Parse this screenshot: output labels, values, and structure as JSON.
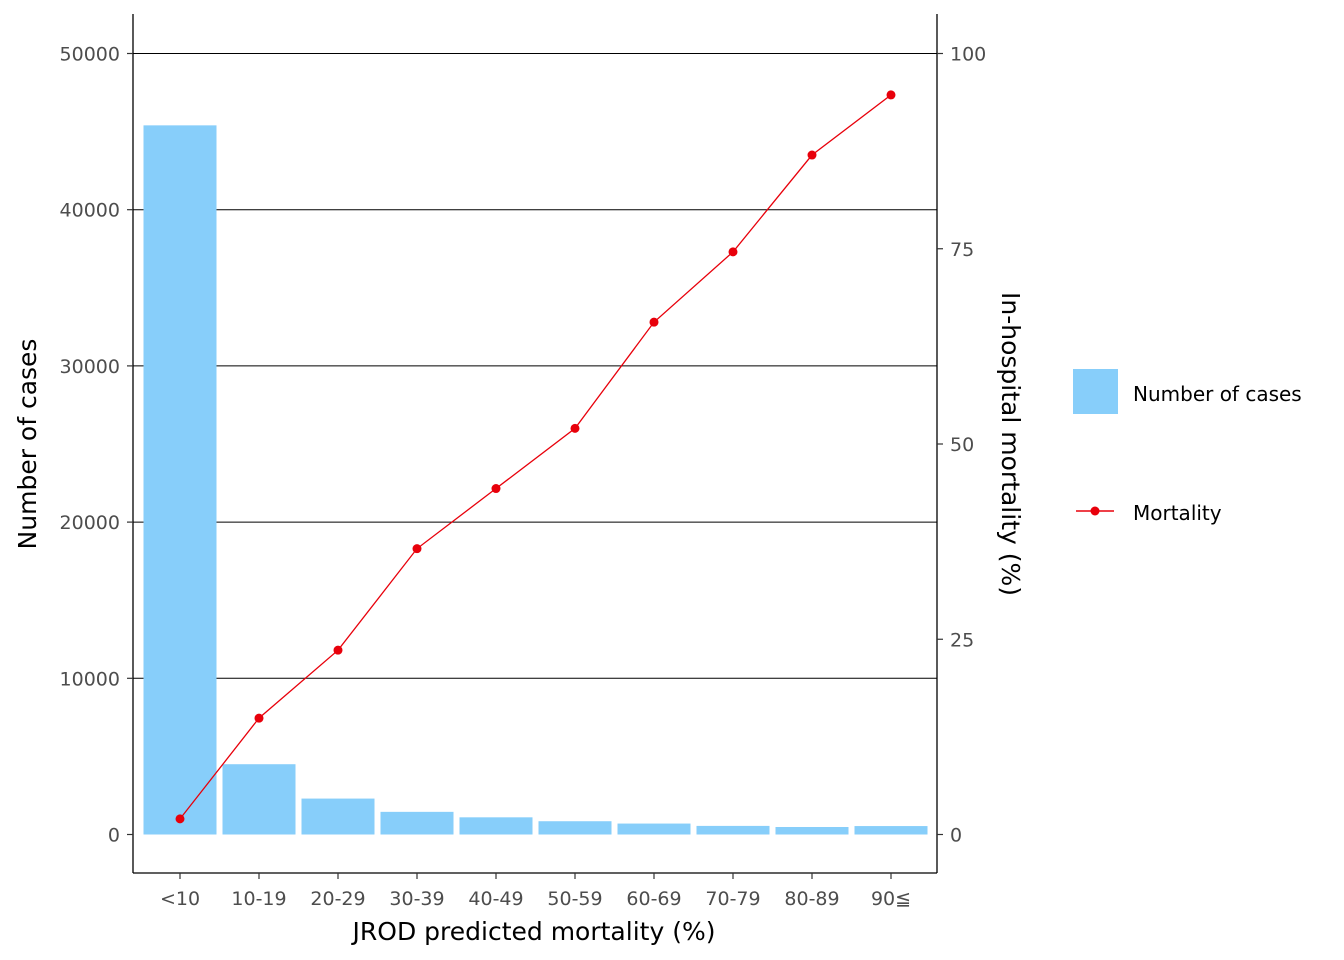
{
  "chart_data": {
    "type": "bar+line",
    "xlabel": "JROD predicted mortality (%)",
    "ylabel_left": "Number of cases",
    "ylabel_right": "In-hospital mortality (%)",
    "categories": [
      "<10",
      "10-19",
      "20-29",
      "30-39",
      "40-49",
      "50-59",
      "60-69",
      "70-79",
      "80-89",
      "90≦"
    ],
    "left_axis": {
      "ylim": [
        0,
        52000
      ],
      "ticks": [
        0,
        10000,
        20000,
        30000,
        40000,
        50000
      ]
    },
    "right_axis": {
      "ylim": [
        0,
        104
      ],
      "ticks": [
        0,
        25,
        50,
        75,
        100
      ]
    },
    "grid": "horizontal major lines",
    "legend_position": "right",
    "series": [
      {
        "name": "Number of cases",
        "type": "bar",
        "axis": "left",
        "color": "#87CEFA",
        "values": [
          45400,
          4500,
          2300,
          1450,
          1100,
          850,
          700,
          550,
          480,
          540
        ]
      },
      {
        "name": "Mortality",
        "type": "line",
        "axis": "right",
        "color": "#e8000b",
        "values": [
          2.0,
          14.9,
          23.6,
          36.6,
          44.3,
          52.0,
          65.6,
          74.6,
          87.0,
          94.7
        ]
      }
    ]
  }
}
